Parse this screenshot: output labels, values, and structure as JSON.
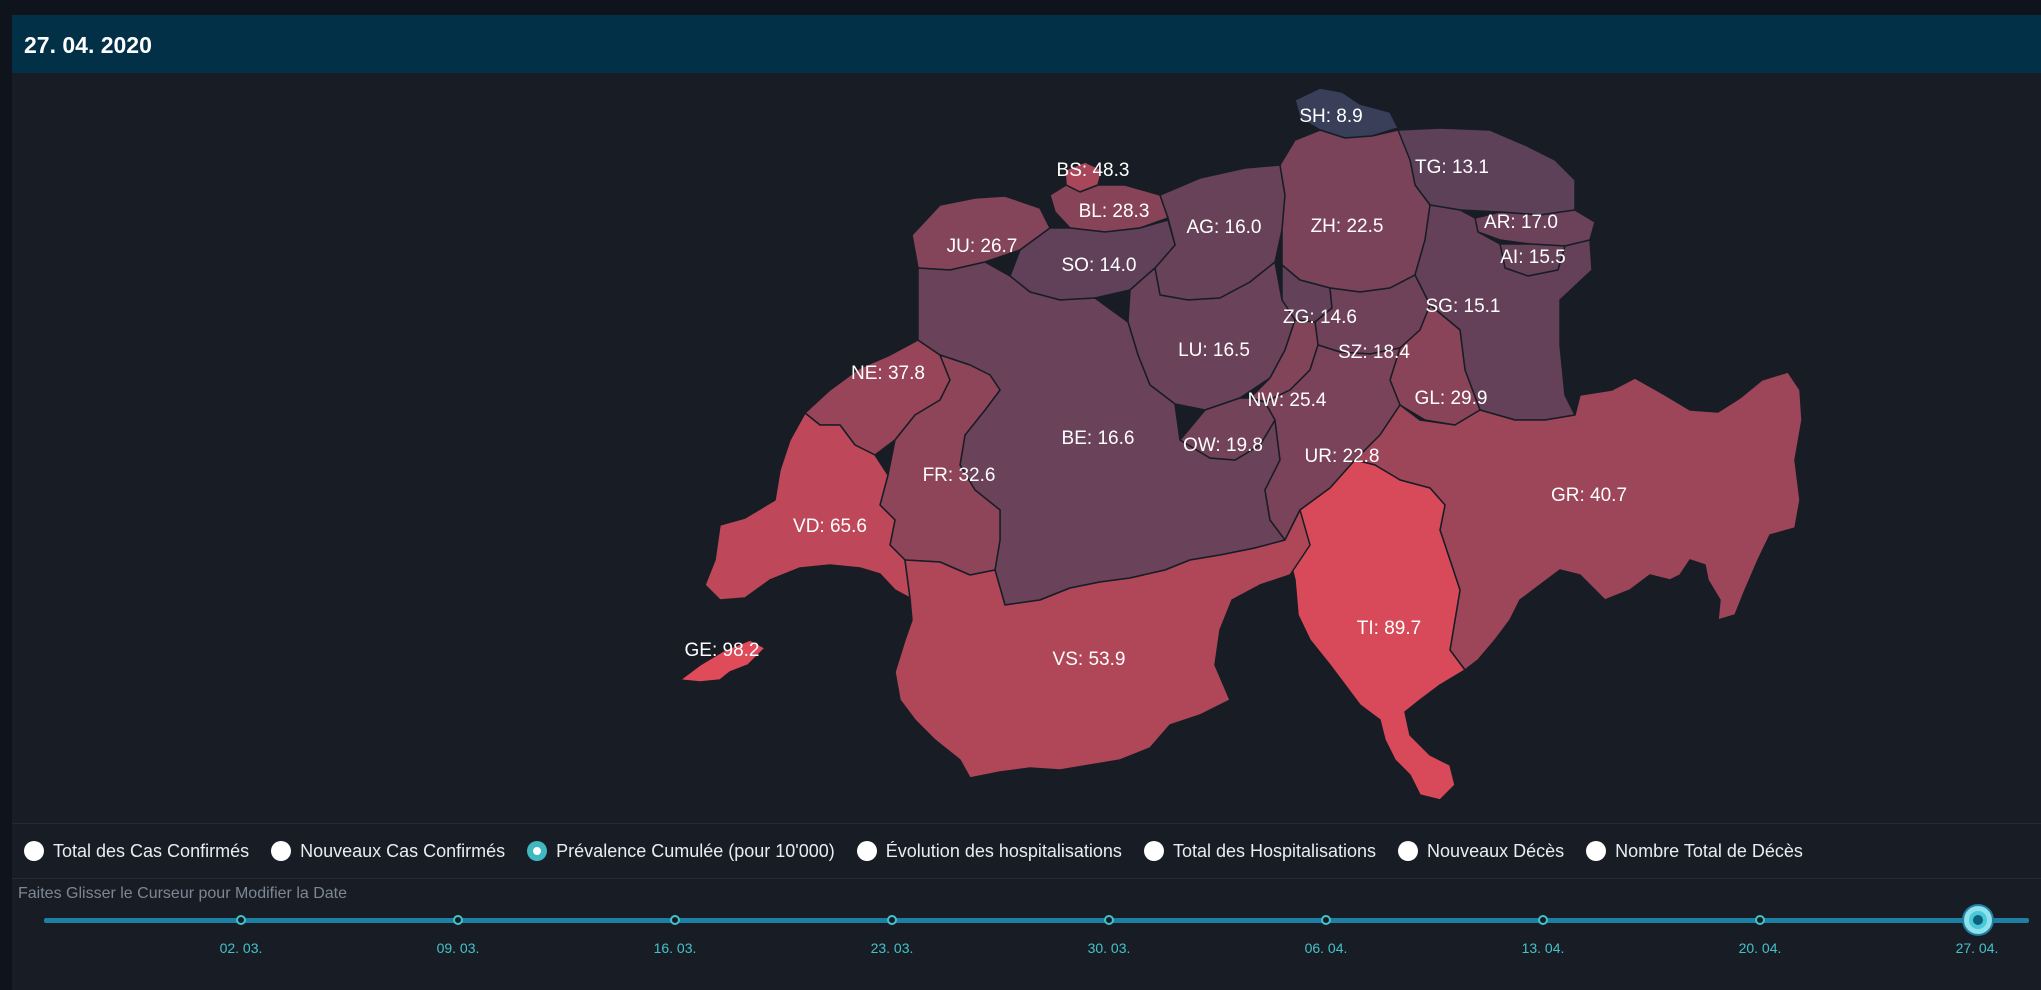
{
  "header": {
    "date": "27. 04. 2020"
  },
  "map": {
    "metric": "Prévalence Cumulée (pour 10'000)",
    "color_scale": {
      "low": "#393e59",
      "high": "#e04b59",
      "min": 8.9,
      "max": 98.2
    },
    "cantons": [
      {
        "code": "SH",
        "label": "SH: 8.9",
        "value": 8.9
      },
      {
        "code": "TG",
        "label": "TG: 13.1",
        "value": 13.1
      },
      {
        "code": "BS",
        "label": "BS: 48.3",
        "value": 48.3
      },
      {
        "code": "BL",
        "label": "BL: 28.3",
        "value": 28.3
      },
      {
        "code": "AG",
        "label": "AG: 16.0",
        "value": 16.0
      },
      {
        "code": "ZH",
        "label": "ZH: 22.5",
        "value": 22.5
      },
      {
        "code": "AR",
        "label": "AR: 17.0",
        "value": 17.0
      },
      {
        "code": "AI",
        "label": "AI: 15.5",
        "value": 15.5
      },
      {
        "code": "JU",
        "label": "JU: 26.7",
        "value": 26.7
      },
      {
        "code": "SO",
        "label": "SO: 14.0",
        "value": 14.0
      },
      {
        "code": "ZG",
        "label": "ZG: 14.6",
        "value": 14.6
      },
      {
        "code": "SG",
        "label": "SG: 15.1",
        "value": 15.1
      },
      {
        "code": "LU",
        "label": "LU: 16.5",
        "value": 16.5
      },
      {
        "code": "SZ",
        "label": "SZ: 18.4",
        "value": 18.4
      },
      {
        "code": "NE",
        "label": "NE: 37.8",
        "value": 37.8
      },
      {
        "code": "NW",
        "label": "NW: 25.4",
        "value": 25.4
      },
      {
        "code": "GL",
        "label": "GL: 29.9",
        "value": 29.9
      },
      {
        "code": "BE",
        "label": "BE: 16.6",
        "value": 16.6
      },
      {
        "code": "OW",
        "label": "OW: 19.8",
        "value": 19.8
      },
      {
        "code": "UR",
        "label": "UR: 22.8",
        "value": 22.8
      },
      {
        "code": "FR",
        "label": "FR: 32.6",
        "value": 32.6
      },
      {
        "code": "GR",
        "label": "GR: 40.7",
        "value": 40.7
      },
      {
        "code": "VD",
        "label": "VD: 65.6",
        "value": 65.6
      },
      {
        "code": "TI",
        "label": "TI: 89.7",
        "value": 89.7
      },
      {
        "code": "GE",
        "label": "GE: 98.2",
        "value": 98.2
      },
      {
        "code": "VS",
        "label": "VS: 53.9",
        "value": 53.9
      }
    ]
  },
  "metrics": [
    {
      "label": "Total des Cas Confirmés",
      "selected": false
    },
    {
      "label": "Nouveaux Cas Confirmés",
      "selected": false
    },
    {
      "label": "Prévalence Cumulée (pour 10'000)",
      "selected": true
    },
    {
      "label": "Évolution des hospitalisations",
      "selected": false
    },
    {
      "label": "Total des Hospitalisations",
      "selected": false
    },
    {
      "label": "Nouveaux Décès",
      "selected": false
    },
    {
      "label": "Nombre Total de Décès",
      "selected": false
    }
  ],
  "slider": {
    "label": "Faites Glisser le Curseur pour Modifier la Date",
    "ticks": [
      "02. 03.",
      "09. 03.",
      "16. 03.",
      "23. 03.",
      "30. 03.",
      "06. 04.",
      "13. 04.",
      "20. 04.",
      "27. 04."
    ],
    "selected_index": 8
  }
}
